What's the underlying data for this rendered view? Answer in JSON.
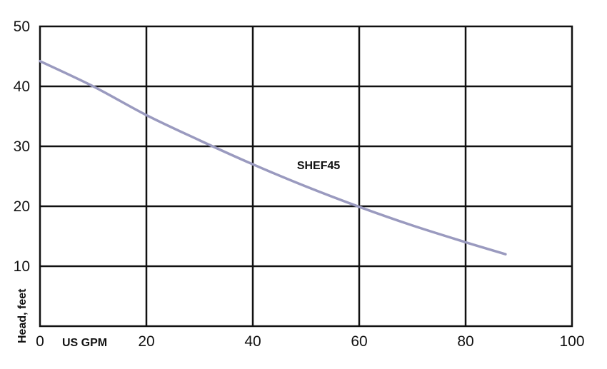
{
  "chart_data": {
    "type": "line",
    "xlabel": "US GPM",
    "ylabel": "Head, feet",
    "xlim": [
      0,
      100
    ],
    "ylim": [
      0,
      50
    ],
    "x_ticks": [
      0,
      20,
      40,
      60,
      80,
      100
    ],
    "y_ticks": [
      10,
      20,
      30,
      40,
      50
    ],
    "grid": true,
    "series": [
      {
        "name": "SHEF45",
        "color": "#9a9abf",
        "x": [
          0,
          10,
          20,
          30,
          40,
          50,
          60,
          70,
          80,
          87.5
        ],
        "y": [
          44.2,
          40,
          35.2,
          31,
          27,
          23.3,
          19.9,
          16.8,
          14,
          12
        ]
      }
    ]
  }
}
